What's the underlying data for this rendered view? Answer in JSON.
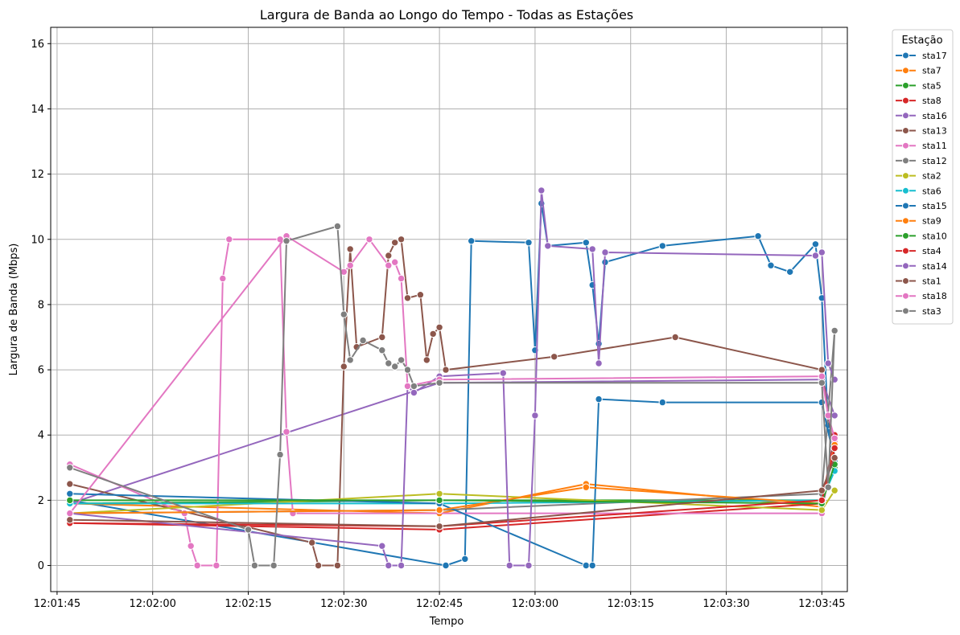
{
  "chart_data": {
    "type": "line",
    "title": "Largura de Banda ao Longo do Tempo - Todas as Estações",
    "xlabel": "Tempo",
    "ylabel": "Largura de Banda (Mbps)",
    "x_range": [
      "12:01:44",
      "12:03:49"
    ],
    "ylim": [
      -0.8,
      16.5
    ],
    "x_ticks": [
      "12:01:45",
      "12:02:00",
      "12:02:15",
      "12:02:30",
      "12:02:45",
      "12:03:00",
      "12:03:15",
      "12:03:30",
      "12:03:45"
    ],
    "y_ticks": [
      "0",
      "2",
      "4",
      "6",
      "8",
      "10",
      "12",
      "14",
      "16"
    ],
    "grid": true,
    "markers": true,
    "legend": {
      "title": "Estação",
      "placement": "outside-right"
    },
    "series": [
      {
        "name": "sta17",
        "color": "#1f77b4",
        "points": [
          [
            "12:01:47",
            2.0
          ],
          [
            "12:02:46",
            0.0
          ],
          [
            "12:02:49",
            0.2
          ],
          [
            "12:02:50",
            9.95
          ],
          [
            "12:02:59",
            9.9
          ],
          [
            "12:03:00",
            6.6
          ],
          [
            "12:03:01",
            11.1
          ],
          [
            "12:03:02",
            9.8
          ],
          [
            "12:03:08",
            9.9
          ],
          [
            "12:03:09",
            8.6
          ],
          [
            "12:03:10",
            6.8
          ],
          [
            "12:03:11",
            9.3
          ],
          [
            "12:03:20",
            9.8
          ],
          [
            "12:03:35",
            10.1
          ],
          [
            "12:03:37",
            9.2
          ],
          [
            "12:03:40",
            9.0
          ],
          [
            "12:03:44",
            9.85
          ],
          [
            "12:03:45",
            8.2
          ],
          [
            "12:03:46",
            4.3
          ],
          [
            "12:03:47",
            3.3
          ]
        ]
      },
      {
        "name": "sta7",
        "color": "#ff7f0e",
        "points": [
          [
            "12:01:47",
            1.9
          ],
          [
            "12:02:45",
            1.6
          ],
          [
            "12:03:08",
            2.5
          ],
          [
            "12:03:45",
            1.8
          ],
          [
            "12:03:47",
            3.9
          ]
        ]
      },
      {
        "name": "sta5",
        "color": "#2ca02c",
        "points": [
          [
            "12:01:47",
            1.9
          ],
          [
            "12:02:45",
            2.0
          ],
          [
            "12:03:45",
            2.0
          ],
          [
            "12:03:47",
            3.0
          ]
        ]
      },
      {
        "name": "sta8",
        "color": "#d62728",
        "points": [
          [
            "12:01:47",
            1.3
          ],
          [
            "12:02:45",
            1.1
          ],
          [
            "12:03:45",
            1.9
          ],
          [
            "12:03:47",
            4.0
          ]
        ]
      },
      {
        "name": "sta16",
        "color": "#9467bd",
        "points": [
          [
            "12:01:47",
            1.9
          ],
          [
            "12:02:45",
            5.6
          ],
          [
            "12:03:45",
            5.7
          ],
          [
            "12:03:47",
            4.6
          ]
        ]
      },
      {
        "name": "sta13",
        "color": "#8c564b",
        "points": [
          [
            "12:01:47",
            2.5
          ],
          [
            "12:02:25",
            0.7
          ],
          [
            "12:02:26",
            0.0
          ],
          [
            "12:02:29",
            0.0
          ],
          [
            "12:02:30",
            6.1
          ],
          [
            "12:02:31",
            9.7
          ],
          [
            "12:02:32",
            6.7
          ],
          [
            "12:02:36",
            7.0
          ],
          [
            "12:02:37",
            9.5
          ],
          [
            "12:02:38",
            9.9
          ],
          [
            "12:02:39",
            10.0
          ],
          [
            "12:02:40",
            8.2
          ],
          [
            "12:02:42",
            8.3
          ],
          [
            "12:02:43",
            6.3
          ],
          [
            "12:02:44",
            7.1
          ],
          [
            "12:02:45",
            7.3
          ],
          [
            "12:02:46",
            6.0
          ],
          [
            "12:03:03",
            6.4
          ],
          [
            "12:03:22",
            7.0
          ],
          [
            "12:03:45",
            6.0
          ],
          [
            "12:03:47",
            3.3
          ]
        ]
      },
      {
        "name": "sta11",
        "color": "#e377c2",
        "points": [
          [
            "12:01:47",
            3.1
          ],
          [
            "12:02:05",
            1.6
          ],
          [
            "12:02:06",
            0.6
          ],
          [
            "12:02:07",
            0.0
          ],
          [
            "12:02:10",
            0.0
          ],
          [
            "12:02:11",
            8.8
          ],
          [
            "12:02:12",
            10.0
          ],
          [
            "12:02:20",
            10.0
          ],
          [
            "12:02:21",
            4.1
          ],
          [
            "12:02:22",
            1.6
          ],
          [
            "12:03:45",
            1.6
          ],
          [
            "12:03:47",
            3.8
          ]
        ]
      },
      {
        "name": "sta12",
        "color": "#7f7f7f",
        "points": [
          [
            "12:01:47",
            1.6
          ],
          [
            "12:02:45",
            1.7
          ],
          [
            "12:03:45",
            2.2
          ],
          [
            "12:03:47",
            7.2
          ]
        ]
      },
      {
        "name": "sta2",
        "color": "#bcbd22",
        "points": [
          [
            "12:01:47",
            1.6
          ],
          [
            "12:02:45",
            2.2
          ],
          [
            "12:03:45",
            1.7
          ],
          [
            "12:03:47",
            2.3
          ]
        ]
      },
      {
        "name": "sta6",
        "color": "#17becf",
        "points": [
          [
            "12:01:47",
            1.9
          ],
          [
            "12:02:45",
            1.9
          ],
          [
            "12:03:45",
            2.0
          ],
          [
            "12:03:47",
            2.9
          ]
        ]
      },
      {
        "name": "sta15",
        "color": "#1f77b4",
        "points": [
          [
            "12:01:47",
            2.2
          ],
          [
            "12:02:45",
            1.9
          ],
          [
            "12:03:08",
            0.0
          ],
          [
            "12:03:09",
            0.0
          ],
          [
            "12:03:10",
            5.1
          ],
          [
            "12:03:20",
            5.0
          ],
          [
            "12:03:45",
            5.0
          ],
          [
            "12:03:47",
            3.2
          ]
        ]
      },
      {
        "name": "sta9",
        "color": "#ff7f0e",
        "points": [
          [
            "12:01:47",
            1.6
          ],
          [
            "12:02:45",
            1.7
          ],
          [
            "12:03:08",
            2.4
          ],
          [
            "12:03:45",
            1.9
          ],
          [
            "12:03:47",
            3.7
          ]
        ]
      },
      {
        "name": "sta10",
        "color": "#2ca02c",
        "points": [
          [
            "12:01:47",
            2.0
          ],
          [
            "12:02:45",
            2.0
          ],
          [
            "12:03:45",
            1.9
          ],
          [
            "12:03:47",
            3.1
          ]
        ]
      },
      {
        "name": "sta4",
        "color": "#d62728",
        "points": [
          [
            "12:01:47",
            1.3
          ],
          [
            "12:02:45",
            1.2
          ],
          [
            "12:03:45",
            2.0
          ],
          [
            "12:03:47",
            3.6
          ]
        ]
      },
      {
        "name": "sta14",
        "color": "#9467bd",
        "points": [
          [
            "12:01:47",
            1.6
          ],
          [
            "12:02:36",
            0.6
          ],
          [
            "12:02:37",
            0.0
          ],
          [
            "12:02:39",
            0.0
          ],
          [
            "12:02:40",
            5.5
          ],
          [
            "12:02:41",
            5.3
          ],
          [
            "12:02:45",
            5.8
          ],
          [
            "12:02:55",
            5.9
          ],
          [
            "12:02:56",
            0.0
          ],
          [
            "12:02:59",
            0.0
          ],
          [
            "12:03:00",
            4.6
          ],
          [
            "12:03:01",
            11.5
          ],
          [
            "12:03:02",
            9.8
          ],
          [
            "12:03:09",
            9.7
          ],
          [
            "12:03:10",
            6.2
          ],
          [
            "12:03:11",
            9.6
          ],
          [
            "12:03:44",
            9.5
          ],
          [
            "12:03:45",
            9.6
          ],
          [
            "12:03:46",
            6.2
          ],
          [
            "12:03:47",
            5.7
          ]
        ]
      },
      {
        "name": "sta1",
        "color": "#8c564b",
        "points": [
          [
            "12:01:47",
            1.4
          ],
          [
            "12:02:45",
            1.2
          ],
          [
            "12:03:45",
            2.3
          ],
          [
            "12:03:47",
            3.3
          ]
        ]
      },
      {
        "name": "sta18",
        "color": "#e377c2",
        "points": [
          [
            "12:01:47",
            1.6
          ],
          [
            "12:02:21",
            10.1
          ],
          [
            "12:02:30",
            9.0
          ],
          [
            "12:02:31",
            9.2
          ],
          [
            "12:02:34",
            10.0
          ],
          [
            "12:02:37",
            9.2
          ],
          [
            "12:02:38",
            9.3
          ],
          [
            "12:02:39",
            8.8
          ],
          [
            "12:02:40",
            5.5
          ],
          [
            "12:02:45",
            5.7
          ],
          [
            "12:03:45",
            5.8
          ],
          [
            "12:03:46",
            4.6
          ],
          [
            "12:03:47",
            3.9
          ]
        ]
      },
      {
        "name": "sta3",
        "color": "#7f7f7f",
        "points": [
          [
            "12:01:47",
            3.0
          ],
          [
            "12:02:15",
            1.1
          ],
          [
            "12:02:16",
            0.0
          ],
          [
            "12:02:19",
            0.0
          ],
          [
            "12:02:20",
            3.4
          ],
          [
            "12:02:21",
            9.95
          ],
          [
            "12:02:29",
            10.4
          ],
          [
            "12:02:30",
            7.7
          ],
          [
            "12:02:31",
            6.3
          ],
          [
            "12:02:33",
            6.9
          ],
          [
            "12:02:36",
            6.6
          ],
          [
            "12:02:37",
            6.2
          ],
          [
            "12:02:38",
            6.1
          ],
          [
            "12:02:39",
            6.3
          ],
          [
            "12:02:40",
            6.0
          ],
          [
            "12:02:41",
            5.5
          ],
          [
            "12:02:45",
            5.6
          ],
          [
            "12:03:45",
            5.6
          ],
          [
            "12:03:46",
            2.4
          ],
          [
            "12:03:47",
            7.2
          ]
        ]
      }
    ]
  }
}
